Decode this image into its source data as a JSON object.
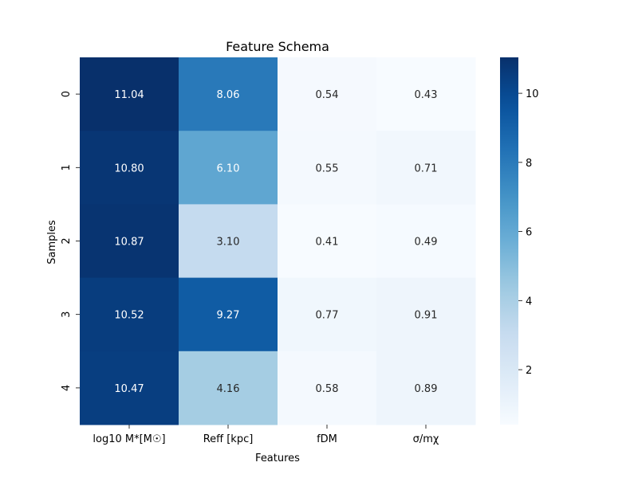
{
  "chart_data": {
    "type": "heatmap",
    "title": "Feature Schema",
    "xlabel": "Features",
    "ylabel": "Samples",
    "columns": [
      "log10 M*[M☉]",
      "Reff [kpc]",
      "fDM",
      "σ/mχ"
    ],
    "rows": [
      "0",
      "1",
      "2",
      "3",
      "4"
    ],
    "values": [
      [
        11.04,
        8.06,
        0.54,
        0.43
      ],
      [
        10.8,
        6.1,
        0.55,
        0.71
      ],
      [
        10.87,
        3.1,
        0.41,
        0.49
      ],
      [
        10.52,
        9.27,
        0.77,
        0.91
      ],
      [
        10.47,
        4.16,
        0.58,
        0.89
      ]
    ],
    "cell_labels": [
      [
        "11.04",
        "8.06",
        "0.54",
        "0.43"
      ],
      [
        "10.80",
        "6.10",
        "0.55",
        "0.71"
      ],
      [
        "10.87",
        "3.10",
        "0.41",
        "0.49"
      ],
      [
        "10.52",
        "9.27",
        "0.77",
        "0.91"
      ],
      [
        "10.47",
        "4.16",
        "0.58",
        "0.89"
      ]
    ],
    "colormap": "Blues",
    "vmin": 0.41,
    "vmax": 11.04,
    "colorbar_ticks": [
      2,
      4,
      6,
      8,
      10
    ],
    "colorbar_tick_labels": [
      "2",
      "4",
      "6",
      "8",
      "10"
    ],
    "grid": false,
    "colorbar_placement": "right"
  }
}
